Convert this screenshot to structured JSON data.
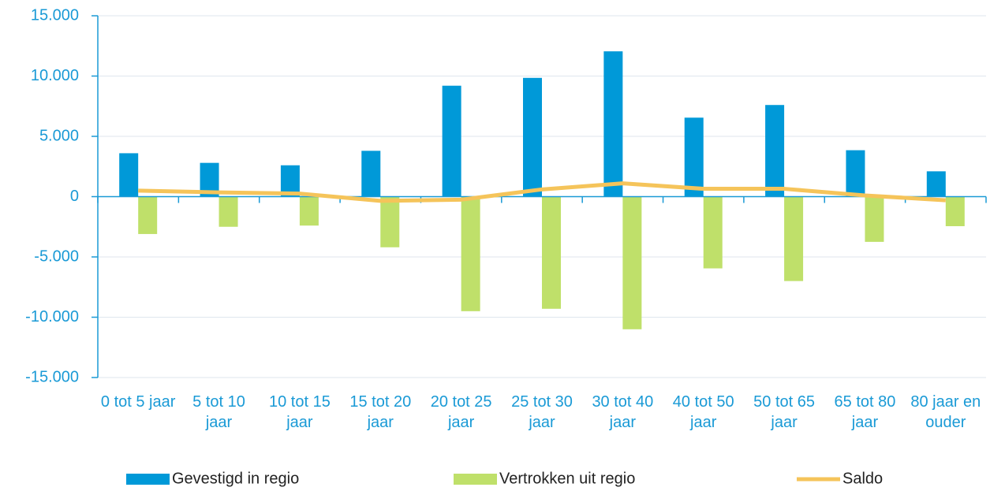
{
  "chart_data": {
    "type": "bar",
    "categories": [
      "0 tot 5 jaar",
      "5 tot 10 jaar",
      "10 tot 15 jaar",
      "15 tot 20 jaar",
      "20 tot 25 jaar",
      "25 tot 30 jaar",
      "30 tot 40 jaar",
      "40 tot 50 jaar",
      "50 tot 65 jaar",
      "65 tot 80 jaar",
      "80 jaar en ouder"
    ],
    "series": [
      {
        "name": "Gevestigd in regio",
        "type": "bar",
        "color": "#0099d8",
        "values": [
          3600,
          2800,
          2600,
          3800,
          9200,
          9850,
          12050,
          6550,
          7600,
          3850,
          2100
        ]
      },
      {
        "name": "Vertrokken uit regio",
        "type": "bar",
        "color": "#bfe06a",
        "values": [
          -3100,
          -2500,
          -2400,
          -4200,
          -9500,
          -9300,
          -11000,
          -5950,
          -7000,
          -3750,
          -2450
        ]
      },
      {
        "name": "Saldo",
        "type": "line",
        "color": "#f5c45a",
        "values": [
          500,
          350,
          250,
          -350,
          -250,
          600,
          1100,
          650,
          650,
          100,
          -300
        ]
      }
    ],
    "ylim": [
      -15000,
      15000
    ],
    "yticks": [
      {
        "value": -15000,
        "label": "-15.000"
      },
      {
        "value": -10000,
        "label": "-10.000"
      },
      {
        "value": -5000,
        "label": "-5.000"
      },
      0,
      {
        "value": 5000,
        "label": "5.000"
      },
      {
        "value": 10000,
        "label": "10.000"
      },
      {
        "value": 15000,
        "label": "15.000"
      }
    ],
    "grid": true,
    "legend": "bottom"
  }
}
